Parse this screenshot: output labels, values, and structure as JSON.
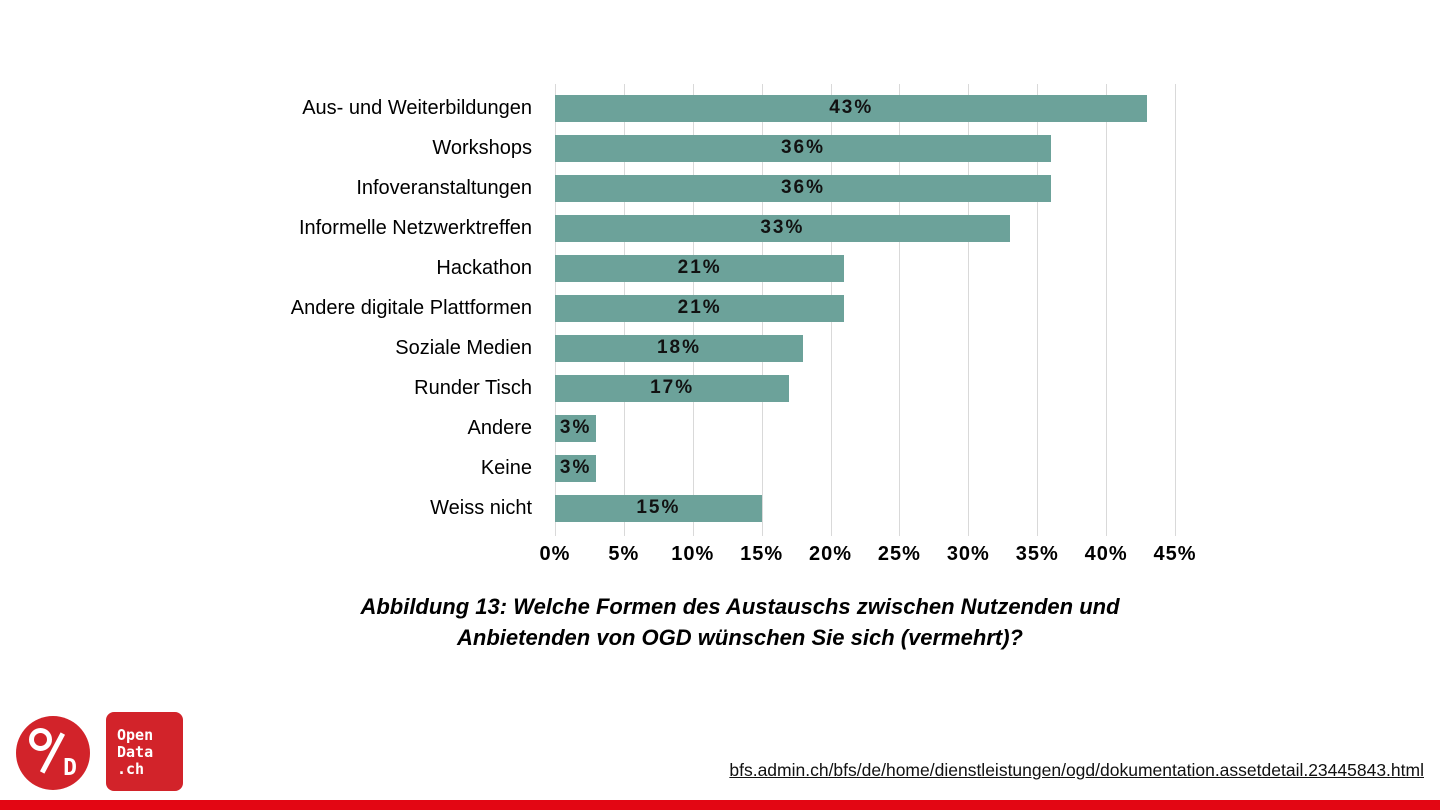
{
  "chart_data": {
    "type": "bar",
    "orientation": "horizontal",
    "title": "Abbildung 13: Welche Formen des Austauschs zwischen Nutzenden und Anbietenden von OGD wünschen Sie sich (vermehrt)?",
    "title_lines": [
      "Abbildung 13: Welche Formen des Austauschs zwischen Nutzenden und",
      "Anbietenden von OGD wünschen Sie sich (vermehrt)?"
    ],
    "categories": [
      "Aus- und Weiterbildungen",
      "Workshops",
      "Infoveranstaltungen",
      "Informelle Netzwerktreffen",
      "Hackathon",
      "Andere digitale Plattformen",
      "Soziale Medien",
      "Runder Tisch",
      "Andere",
      "Keine",
      "Weiss nicht"
    ],
    "values": [
      43,
      36,
      36,
      33,
      21,
      21,
      18,
      17,
      3,
      3,
      15
    ],
    "value_labels": [
      "43%",
      "36%",
      "36%",
      "33%",
      "21%",
      "21%",
      "18%",
      "17%",
      "3%",
      "3%",
      "15%"
    ],
    "x_ticks": [
      "0%",
      "5%",
      "10%",
      "15%",
      "20%",
      "25%",
      "30%",
      "35%",
      "40%",
      "45%"
    ],
    "x_tick_values": [
      0,
      5,
      10,
      15,
      20,
      25,
      30,
      35,
      40,
      45
    ],
    "xlim": [
      0,
      45
    ],
    "grid": true,
    "bar_color": "#6CA29A",
    "grid_color": "#D9D9D9"
  },
  "footer": {
    "link": "bfs.admin.ch/bfs/de/home/dienstleistungen/ogd/dokumentation.assetdetail.23445843.html",
    "logo_circle_d": "D",
    "logo_square_lines": [
      "Open",
      "Data",
      ".ch"
    ],
    "brand_red": "#D2232A",
    "bottom_bar_color": "#E30613"
  }
}
